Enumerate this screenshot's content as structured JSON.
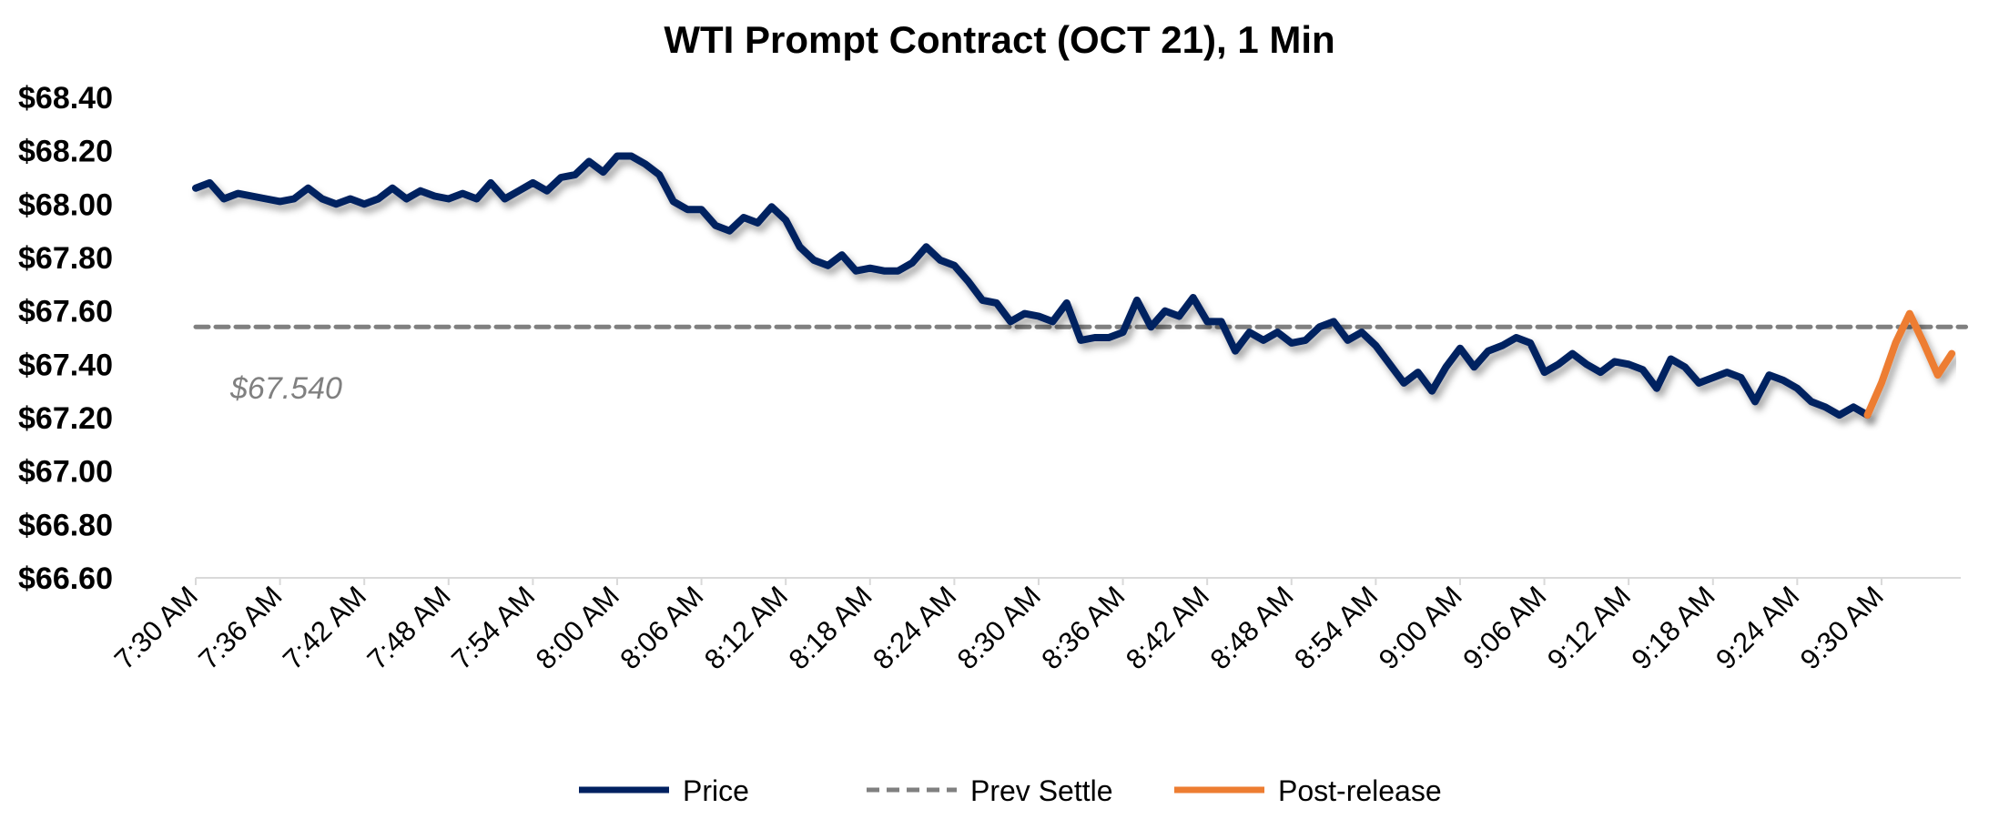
{
  "chart_data": {
    "type": "line",
    "title": "WTI Prompt Contract (OCT 21), 1 Min",
    "xlabel": "",
    "ylabel": "",
    "ylim": [
      66.6,
      68.4
    ],
    "y_ticks": [
      "$68.40",
      "$68.20",
      "$68.00",
      "$67.80",
      "$67.60",
      "$67.40",
      "$67.20",
      "$67.00",
      "$66.80",
      "$66.60"
    ],
    "y_tick_values": [
      68.4,
      68.2,
      68.0,
      67.8,
      67.6,
      67.4,
      67.2,
      67.0,
      66.8,
      66.6
    ],
    "x_ticks": [
      "7:30 AM",
      "7:36 AM",
      "7:42 AM",
      "7:48 AM",
      "7:54 AM",
      "8:00 AM",
      "8:06 AM",
      "8:12 AM",
      "8:18 AM",
      "8:24 AM",
      "8:30 AM",
      "8:36 AM",
      "8:42 AM",
      "8:48 AM",
      "8:54 AM",
      "9:00 AM",
      "9:06 AM",
      "9:12 AM",
      "9:18 AM",
      "9:24 AM",
      "9:30 AM"
    ],
    "x_unit": "minutes after 7:30 AM",
    "x_range": [
      0,
      126
    ],
    "grid": false,
    "legend_position": "bottom",
    "series": [
      {
        "name": "Price",
        "color": "#002060",
        "x_start": 0,
        "values": [
          68.06,
          68.08,
          68.02,
          68.04,
          68.03,
          68.02,
          68.01,
          68.02,
          68.06,
          68.02,
          68.0,
          68.02,
          68.0,
          68.02,
          68.06,
          68.02,
          68.05,
          68.03,
          68.02,
          68.04,
          68.02,
          68.08,
          68.02,
          68.05,
          68.08,
          68.05,
          68.1,
          68.11,
          68.16,
          68.12,
          68.18,
          68.18,
          68.15,
          68.11,
          68.01,
          67.98,
          67.98,
          67.92,
          67.9,
          67.95,
          67.93,
          67.99,
          67.94,
          67.84,
          67.79,
          67.77,
          67.81,
          67.75,
          67.76,
          67.75,
          67.75,
          67.78,
          67.84,
          67.79,
          67.77,
          67.71,
          67.64,
          67.63,
          67.56,
          67.59,
          67.58,
          67.56,
          67.63,
          67.49,
          67.5,
          67.5,
          67.52,
          67.64,
          67.54,
          67.6,
          67.58,
          67.65,
          67.56,
          67.56,
          67.45,
          67.52,
          67.49,
          67.52,
          67.48,
          67.49,
          67.54,
          67.56,
          67.49,
          67.52,
          67.47,
          67.4,
          67.33,
          67.37,
          67.3,
          67.39,
          67.46,
          67.39,
          67.45,
          67.47,
          67.5,
          67.48,
          67.37,
          67.4,
          67.44,
          67.4,
          67.37,
          67.41,
          67.4,
          67.38,
          67.31,
          67.42,
          67.39,
          67.33,
          67.35,
          67.37,
          67.35,
          67.26,
          67.36,
          67.34,
          67.31,
          67.26,
          67.24,
          67.21,
          67.24,
          67.21
        ]
      },
      {
        "name": "Prev Settle",
        "color": "#808080",
        "value": 67.54
      },
      {
        "name": "Post-release",
        "color": "#ED7D31",
        "x_start": 119,
        "values": [
          67.21,
          67.33,
          67.48,
          67.59,
          67.48,
          67.36,
          67.44
        ]
      }
    ],
    "annotations": [
      {
        "text": "$67.540",
        "refers_to": "Prev Settle"
      }
    ]
  }
}
